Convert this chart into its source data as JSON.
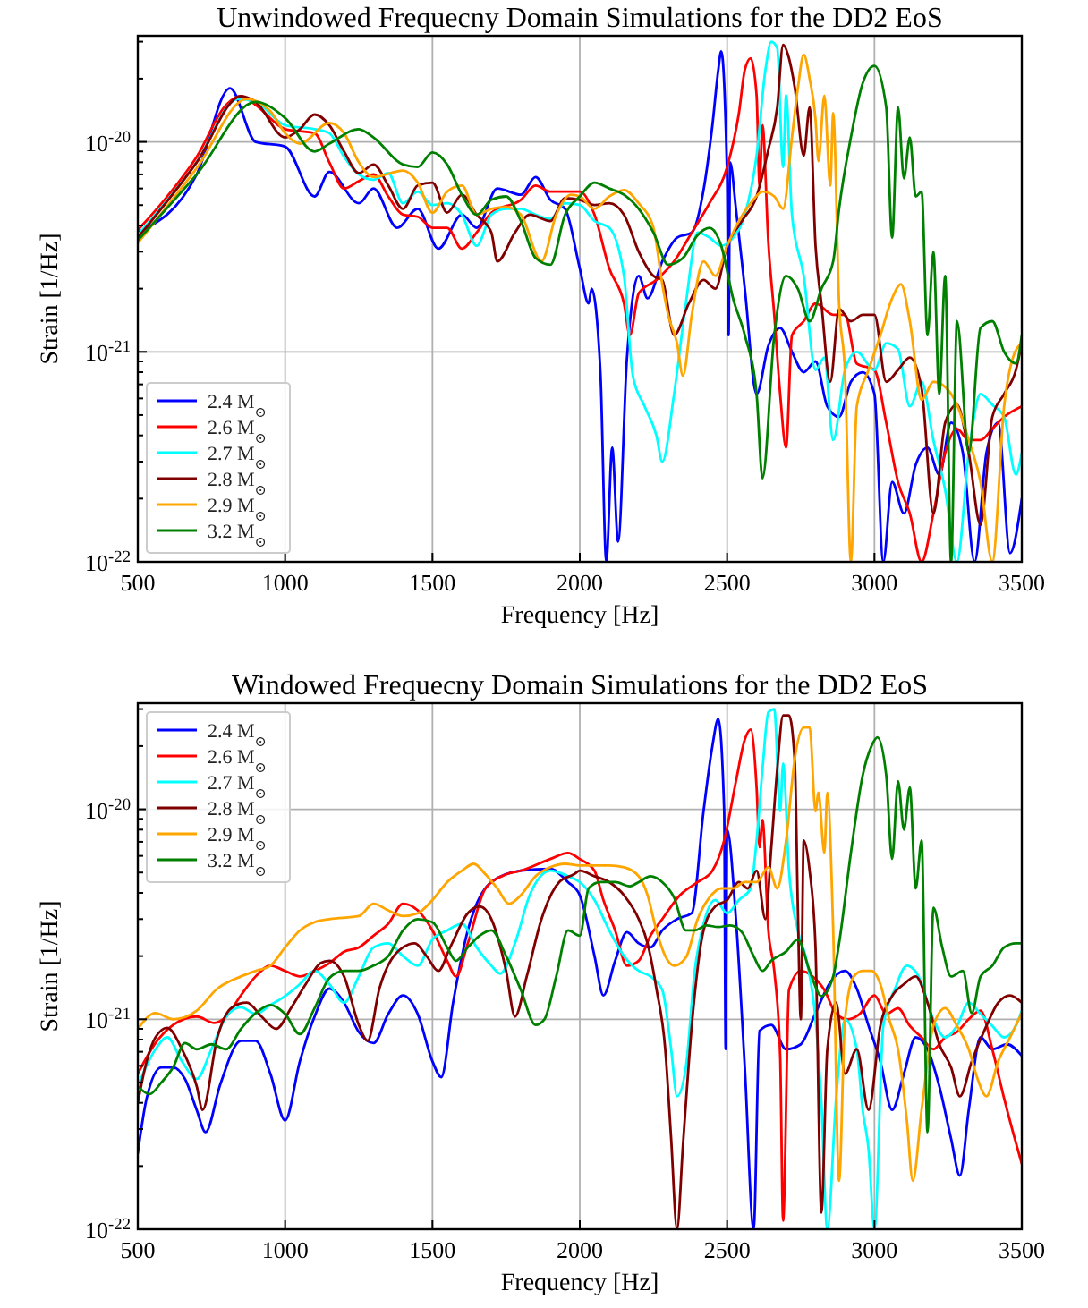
{
  "chart_data": [
    {
      "type": "line",
      "title": "Unwindowed Frequecny Domain Simulations for the DD2 EoS",
      "xlabel": "Frequency [Hz]",
      "ylabel": "Strain [1/Hz]",
      "log": "y",
      "grid": true,
      "legend": "bottom left",
      "line_style": "solid",
      "marker": "none",
      "xlim": [
        500,
        3500
      ],
      "xticks": [
        500,
        1000,
        1500,
        2000,
        2500,
        3000,
        3500
      ],
      "ylim": [
        1e-22,
        3.2e-20
      ],
      "yticks": [
        {
          "value": 1e-22,
          "label": "10$^{-22}$"
        },
        {
          "value": 2e-22,
          "label": null
        },
        {
          "value": 3e-22,
          "label": null
        },
        {
          "value": 4e-22,
          "label": null
        },
        {
          "value": 5e-22,
          "label": null
        },
        {
          "value": 6e-22,
          "label": null
        },
        {
          "value": 7e-22,
          "label": null
        },
        {
          "value": 8e-22,
          "label": null
        },
        {
          "value": 9e-22,
          "label": null
        },
        {
          "value": 1e-21,
          "label": "10$^{-21}$"
        },
        {
          "value": 2e-21,
          "label": null
        },
        {
          "value": 3e-21,
          "label": null
        },
        {
          "value": 4e-21,
          "label": null
        },
        {
          "value": 5e-21,
          "label": null
        },
        {
          "value": 6e-21,
          "label": null
        },
        {
          "value": 7e-21,
          "label": null
        },
        {
          "value": 8e-21,
          "label": null
        },
        {
          "value": 9e-21,
          "label": null
        },
        {
          "value": 1e-20,
          "label": "10$^{-20}$"
        },
        {
          "value": 2e-20,
          "label": null
        },
        {
          "value": 3e-20,
          "label": null
        }
      ],
      "series": [
        {
          "name": "2.4 M$_{⊙}$",
          "color": "#0000ff",
          "x": [
            500,
            700,
            813,
            900,
            1000,
            1100,
            1150,
            1250,
            1300,
            1380,
            1450,
            1520,
            1600,
            1650,
            1720,
            1800,
            1850,
            1900,
            1950,
            2000,
            2030,
            2040,
            2070,
            2090,
            2110,
            2130,
            2160,
            2200,
            2230,
            2280,
            2330,
            2380,
            2420,
            2450,
            2470,
            2480,
            2500,
            2505,
            2510,
            2530,
            2560,
            2600,
            2640,
            2680,
            2720,
            2760,
            2800,
            2840,
            2880,
            2920,
            2960,
            3000,
            3030,
            3060,
            3100,
            3140,
            3180,
            3220,
            3260,
            3300,
            3340,
            3380,
            3420,
            3460,
            3500
          ],
          "values": [
            3.7e-21,
            7e-21,
            1.8e-20,
            1e-20,
            9.5e-21,
            5.5e-21,
            7.2e-21,
            5.1e-21,
            6e-21,
            3.9e-21,
            4.8e-21,
            3.1e-21,
            4.5e-21,
            3.9e-21,
            6e-21,
            5.6e-21,
            6.8e-21,
            5.3e-21,
            4.8e-21,
            2.5e-21,
            1.7e-21,
            2e-21,
            8e-22,
            1e-22,
            3.5e-22,
            1.25e-22,
            9.3e-22,
            2.3e-21,
            1.8e-21,
            2.7e-21,
            3.5e-21,
            3.7e-21,
            5.9e-21,
            1.2e-20,
            2.2e-20,
            2.7e-20,
            6.7e-21,
            1.2e-21,
            8e-21,
            4.8e-21,
            2e-21,
            6.3e-22,
            1.07e-21,
            1.3e-21,
            1e-21,
            8e-22,
            9e-22,
            5.5e-22,
            4.9e-22,
            7.2e-22,
            8e-22,
            6.3e-22,
            1e-22,
            2.4e-22,
            1.7e-22,
            2.9e-22,
            3.5e-22,
            2.6e-22,
            4.6e-22,
            3.3e-22,
            1e-22,
            3.3e-22,
            4.6e-22,
            1.1e-22,
            2e-22
          ]
        },
        {
          "name": "2.6 M$_{⊙}$",
          "color": "#ff0000",
          "x": [
            500,
            600,
            700,
            800,
            850,
            900,
            1000,
            1100,
            1150,
            1200,
            1250,
            1300,
            1350,
            1400,
            1450,
            1500,
            1550,
            1600,
            1650,
            1700,
            1800,
            1850,
            1900,
            2000,
            2050,
            2100,
            2150,
            2170,
            2200,
            2260,
            2320,
            2380,
            2440,
            2500,
            2540,
            2560,
            2580,
            2600,
            2610,
            2620,
            2640,
            2660,
            2680,
            2700,
            2720,
            2760,
            2800,
            2860,
            2900,
            2940,
            3000,
            3040,
            3080,
            3120,
            3160,
            3200,
            3240,
            3280,
            3320,
            3360,
            3400,
            3440,
            3500
          ],
          "values": [
            3.8e-21,
            5.5e-21,
            8.5e-21,
            1.5e-20,
            1.65e-20,
            1.5e-20,
            1.15e-20,
            1.1e-20,
            8e-21,
            6e-21,
            6.5e-21,
            7e-21,
            5.5e-21,
            4.5e-21,
            4.4e-21,
            3.9e-21,
            3.9e-21,
            3.1e-21,
            3.7e-21,
            4.6e-21,
            5.3e-21,
            6.2e-21,
            5.8e-21,
            5.8e-21,
            4.5e-21,
            2.5e-21,
            1.7e-21,
            1.2e-21,
            1.9e-21,
            2.2e-21,
            2.7e-21,
            3.7e-21,
            5.1e-21,
            7.6e-21,
            1.37e-20,
            2.2e-20,
            2.5e-20,
            1.67e-20,
            6.2e-21,
            1.2e-20,
            3.3e-21,
            1.5e-21,
            6.3e-22,
            3.5e-22,
            1.2e-21,
            1.4e-21,
            1.7e-21,
            1.5e-21,
            1.5e-21,
            8.8e-22,
            8.2e-22,
            4.6e-22,
            2.4e-22,
            1.7e-22,
            1e-22,
            1.7e-22,
            3.3e-22,
            4.3e-22,
            3.8e-22,
            3.8e-22,
            4.3e-22,
            4.9e-22,
            5.5e-22
          ]
        },
        {
          "name": "2.7 M$_{⊙}$",
          "color": "#00ffff",
          "x": [
            500,
            700,
            840,
            900,
            1000,
            1100,
            1150,
            1200,
            1250,
            1300,
            1350,
            1400,
            1450,
            1500,
            1550,
            1600,
            1650,
            1700,
            1750,
            1800,
            1850,
            1900,
            1950,
            2000,
            2050,
            2100,
            2150,
            2180,
            2220,
            2260,
            2280,
            2320,
            2360,
            2400,
            2440,
            2480,
            2520,
            2560,
            2600,
            2630,
            2650,
            2670,
            2690,
            2700,
            2720,
            2760,
            2800,
            2830,
            2860,
            2900,
            2940,
            3000,
            3040,
            3080,
            3120,
            3160,
            3200,
            3240,
            3280,
            3320,
            3360,
            3400,
            3440,
            3480,
            3500
          ],
          "values": [
            3.6e-21,
            8e-21,
            1.6e-20,
            1.55e-20,
            1.2e-20,
            1.15e-20,
            1.1e-20,
            8.5e-21,
            7e-21,
            6.6e-21,
            7.1e-21,
            5.1e-21,
            5.8e-21,
            5e-21,
            5.1e-21,
            4.5e-21,
            3.2e-21,
            4.5e-21,
            4.8e-21,
            4.8e-21,
            4.5e-21,
            4.3e-21,
            5.1e-21,
            5e-21,
            4.2e-21,
            3.9e-21,
            2.3e-21,
            7.7e-22,
            5.5e-22,
            4e-22,
            3e-22,
            6.3e-22,
            1.7e-21,
            3.7e-21,
            3.5e-21,
            3.2e-21,
            3.5e-21,
            4.5e-21,
            8.6e-21,
            2.2e-20,
            3e-20,
            2.8e-20,
            7.6e-21,
            1.67e-20,
            4.5e-21,
            2.3e-21,
            8.2e-22,
            9.4e-22,
            3.8e-22,
            8.2e-22,
            1e-21,
            8.2e-22,
            1.1e-21,
            1.03e-21,
            5.5e-22,
            7.2e-22,
            3.8e-22,
            2.2e-22,
            1e-22,
            3.3e-22,
            6.3e-22,
            5.6e-22,
            4.9e-22,
            2.6e-22,
            3.3e-22
          ]
        },
        {
          "name": "2.8 M$_{⊙}$",
          "color": "#800000",
          "x": [
            500,
            700,
            850,
            900,
            1000,
            1050,
            1100,
            1150,
            1200,
            1250,
            1300,
            1350,
            1400,
            1450,
            1500,
            1550,
            1600,
            1650,
            1700,
            1720,
            1780,
            1830,
            1900,
            1950,
            2000,
            2050,
            2100,
            2150,
            2200,
            2250,
            2280,
            2320,
            2370,
            2420,
            2460,
            2500,
            2550,
            2600,
            2640,
            2670,
            2690,
            2710,
            2730,
            2760,
            2780,
            2800,
            2820,
            2850,
            2880,
            2920,
            2960,
            3000,
            3040,
            3080,
            3120,
            3160,
            3200,
            3240,
            3280,
            3320,
            3360,
            3400,
            3440,
            3480,
            3500
          ],
          "values": [
            3.5e-21,
            8e-21,
            1.65e-20,
            1.55e-20,
            1.05e-20,
            1.15e-20,
            1.35e-20,
            1.2e-20,
            9e-21,
            7.1e-21,
            7.8e-21,
            6.2e-21,
            4.8e-21,
            6.2e-21,
            6.4e-21,
            4.6e-21,
            5.6e-21,
            4.5e-21,
            3.7e-21,
            2.7e-21,
            3.7e-21,
            4.5e-21,
            4.2e-21,
            5.4e-21,
            5.3e-21,
            5e-21,
            5.1e-21,
            4.5e-21,
            3e-21,
            2.3e-21,
            2.2e-21,
            1.2e-21,
            1.7e-21,
            2.2e-21,
            2e-21,
            3.2e-21,
            4.2e-21,
            5.5e-21,
            9.2e-21,
            1.46e-20,
            2.9e-20,
            2.5e-20,
            1.8e-20,
            8.6e-21,
            1.46e-20,
            3.2e-21,
            1.7e-21,
            7.2e-22,
            1.6e-21,
            1.4e-21,
            1.5e-21,
            1.5e-21,
            7.2e-22,
            8.2e-22,
            9.4e-22,
            6.7e-22,
            1.7e-22,
            4.6e-22,
            5.6e-22,
            3.3e-22,
            1.5e-22,
            4.9e-22,
            6.3e-22,
            8.2e-22,
            1.1e-21
          ]
        },
        {
          "name": "2.9 M$_{⊙}$",
          "color": "#ffa500",
          "x": [
            500,
            700,
            870,
            950,
            1000,
            1050,
            1150,
            1200,
            1250,
            1300,
            1400,
            1450,
            1500,
            1550,
            1600,
            1650,
            1700,
            1750,
            1800,
            1870,
            1920,
            1970,
            2000,
            2050,
            2100,
            2150,
            2200,
            2250,
            2280,
            2300,
            2330,
            2350,
            2380,
            2420,
            2460,
            2500,
            2540,
            2580,
            2620,
            2660,
            2690,
            2720,
            2740,
            2760,
            2780,
            2800,
            2810,
            2830,
            2850,
            2860,
            2880,
            2900,
            2920,
            2940,
            2980,
            3020,
            3060,
            3090,
            3120,
            3160,
            3200,
            3240,
            3280,
            3320,
            3360,
            3400,
            3440,
            3470,
            3500
          ],
          "values": [
            3.3e-21,
            7.5e-21,
            1.6e-20,
            1.4e-20,
            1.1e-20,
            9.8e-21,
            1.23e-20,
            1.1e-20,
            8e-21,
            6.8e-21,
            7.3e-21,
            6.4e-21,
            4.6e-21,
            5.8e-21,
            6.2e-21,
            4.5e-21,
            4.8e-21,
            4.9e-21,
            4.5e-21,
            2.7e-21,
            4.5e-21,
            5.6e-21,
            5.5e-21,
            4.8e-21,
            5.5e-21,
            5.9e-21,
            5.1e-21,
            3.9e-21,
            2.1e-21,
            1.5e-21,
            1.1e-21,
            7.7e-22,
            1.5e-21,
            2.7e-21,
            2.3e-21,
            3.2e-21,
            4.2e-21,
            5.1e-21,
            5.8e-21,
            5.5e-21,
            4.8e-21,
            1.05e-20,
            1.8e-20,
            2.6e-20,
            2e-20,
            1.28e-20,
            8.1e-21,
            1.66e-20,
            6.2e-21,
            1.37e-20,
            1.7e-21,
            8e-22,
            1e-22,
            5.5e-22,
            8.2e-22,
            1.2e-21,
            1.8e-21,
            2.1e-21,
            1.4e-21,
            5.9e-22,
            7.2e-22,
            6.8e-22,
            5.6e-22,
            3.8e-22,
            2.4e-22,
            1e-22,
            5.5e-22,
            9.4e-22,
            1.1e-21
          ]
        },
        {
          "name": "3.2 M$_{⊙}$",
          "color": "#008000",
          "x": [
            500,
            700,
            900,
            1000,
            1100,
            1150,
            1250,
            1300,
            1400,
            1450,
            1500,
            1550,
            1600,
            1650,
            1700,
            1750,
            1800,
            1850,
            1900,
            1950,
            2000,
            2050,
            2100,
            2150,
            2200,
            2250,
            2300,
            2350,
            2400,
            2440,
            2480,
            2520,
            2560,
            2600,
            2620,
            2660,
            2700,
            2740,
            2780,
            2820,
            2860,
            2880,
            2920,
            2960,
            3000,
            3040,
            3060,
            3080,
            3100,
            3120,
            3140,
            3160,
            3180,
            3200,
            3220,
            3240,
            3260,
            3280,
            3320,
            3360,
            3400,
            3440,
            3480,
            3500
          ],
          "values": [
            3.4e-21,
            7e-21,
            1.55e-20,
            1.3e-20,
            9e-21,
            9.8e-21,
            1.15e-20,
            1.05e-20,
            7.8e-21,
            7.6e-21,
            8.9e-21,
            7.8e-21,
            5.6e-21,
            4.5e-21,
            5.3e-21,
            5.5e-21,
            4.2e-21,
            2.8e-21,
            2.6e-21,
            4.5e-21,
            5.5e-21,
            6.4e-21,
            6e-21,
            5.6e-21,
            4.8e-21,
            3.7e-21,
            2.6e-21,
            2.8e-21,
            3.6e-21,
            3.9e-21,
            3.2e-21,
            1.8e-21,
            1.2e-21,
            6.3e-22,
            2.5e-22,
            1.2e-21,
            2.3e-21,
            2e-21,
            1.4e-21,
            2e-21,
            2.7e-21,
            4.8e-21,
            1.05e-20,
            1.9e-20,
            2.3e-20,
            1.46e-20,
            3.5e-21,
            1.46e-20,
            6.7e-21,
            1.05e-20,
            5.5e-21,
            5.8e-21,
            1.2e-21,
            3e-21,
            6.3e-22,
            2.3e-21,
            1e-22,
            1.4e-21,
            3.3e-22,
            1.3e-21,
            1.4e-21,
            1e-21,
            8.8e-22,
            1.2e-21
          ]
        }
      ]
    },
    {
      "type": "line",
      "title": "Windowed Frequecny Domain Simulations for the DD2 EoS",
      "xlabel": "Frequency [Hz]",
      "ylabel": "Strain [1/Hz]",
      "log": "y",
      "grid": true,
      "legend": "top left",
      "line_style": "solid",
      "marker": "none",
      "xlim": [
        500,
        3500
      ],
      "xticks": [
        500,
        1000,
        1500,
        2000,
        2500,
        3000,
        3500
      ],
      "ylim": [
        1e-22,
        3.2e-20
      ],
      "yticks": [
        {
          "value": 1e-22,
          "label": "10$^{-22}$"
        },
        {
          "value": 2e-22,
          "label": null
        },
        {
          "value": 3e-22,
          "label": null
        },
        {
          "value": 4e-22,
          "label": null
        },
        {
          "value": 5e-22,
          "label": null
        },
        {
          "value": 6e-22,
          "label": null
        },
        {
          "value": 7e-22,
          "label": null
        },
        {
          "value": 8e-22,
          "label": null
        },
        {
          "value": 9e-22,
          "label": null
        },
        {
          "value": 1e-21,
          "label": "10$^{-21}$"
        },
        {
          "value": 2e-21,
          "label": null
        },
        {
          "value": 3e-21,
          "label": null
        },
        {
          "value": 4e-21,
          "label": null
        },
        {
          "value": 5e-21,
          "label": null
        },
        {
          "value": 6e-21,
          "label": null
        },
        {
          "value": 7e-21,
          "label": null
        },
        {
          "value": 8e-21,
          "label": null
        },
        {
          "value": 9e-21,
          "label": null
        },
        {
          "value": 1e-20,
          "label": "10$^{-20}$"
        },
        {
          "value": 2e-20,
          "label": null
        },
        {
          "value": 3e-20,
          "label": null
        }
      ],
      "series": [
        {
          "name": "2.4 M$_{⊙}$",
          "color": "#0000ff",
          "x": [
            500,
            530,
            580,
            620,
            660,
            700,
            730,
            780,
            850,
            900,
            950,
            1000,
            1050,
            1100,
            1150,
            1200,
            1250,
            1300,
            1350,
            1400,
            1450,
            1500,
            1530,
            1570,
            1620,
            1700,
            1800,
            1900,
            1960,
            2000,
            2050,
            2080,
            2120,
            2160,
            2200,
            2240,
            2280,
            2330,
            2380,
            2420,
            2450,
            2470,
            2490,
            2495,
            2500,
            2530,
            2560,
            2590,
            2610,
            2650,
            2700,
            2750,
            2800,
            2850,
            2900,
            2940,
            2980,
            3020,
            3060,
            3100,
            3140,
            3180,
            3220,
            3260,
            3290,
            3320,
            3360,
            3400,
            3450,
            3500
          ],
          "values": [
            2.3e-22,
            4.2e-22,
            5.9e-22,
            5.9e-22,
            5.2e-22,
            3.7e-22,
            2.9e-22,
            4.9e-22,
            7.9e-22,
            7.9e-22,
            5.5e-22,
            3.3e-22,
            6.3e-22,
            1.03e-21,
            1.4e-21,
            1.2e-21,
            8.7e-22,
            7.7e-22,
            1.06e-21,
            1.3e-21,
            1.06e-21,
            6.3e-22,
            5.3e-22,
            1.2e-21,
            2.65e-21,
            4.5e-21,
            5.1e-21,
            5.2e-21,
            4.5e-21,
            3.9e-21,
            2e-21,
            1.3e-21,
            1.9e-21,
            2.6e-21,
            2.3e-21,
            2.2e-21,
            2.65e-21,
            3e-21,
            3.2e-21,
            9.8e-21,
            2e-20,
            2.7e-20,
            9.8e-21,
            7.2e-22,
            8e-21,
            3e-21,
            5.9e-22,
            1e-22,
            8.8e-22,
            9.4e-22,
            7.2e-22,
            7.6e-22,
            1.07e-21,
            1.5e-21,
            1.7e-21,
            1.4e-21,
            9.3e-22,
            6.3e-22,
            3.7e-22,
            5.5e-22,
            8.2e-22,
            7.2e-22,
            4.8e-22,
            2.7e-22,
            1.8e-22,
            3.7e-22,
            8.2e-22,
            7.2e-22,
            7.6e-22,
            6.7e-22
          ]
        },
        {
          "name": "2.6 M$_{⊙}$",
          "color": "#ff0000",
          "x": [
            500,
            560,
            620,
            700,
            760,
            800,
            850,
            900,
            950,
            1000,
            1050,
            1100,
            1150,
            1200,
            1250,
            1300,
            1350,
            1400,
            1450,
            1500,
            1550,
            1580,
            1620,
            1680,
            1750,
            1800,
            1900,
            1960,
            2000,
            2050,
            2080,
            2120,
            2160,
            2200,
            2240,
            2280,
            2340,
            2400,
            2450,
            2490,
            2530,
            2560,
            2580,
            2600,
            2610,
            2620,
            2640,
            2660,
            2680,
            2690,
            2710,
            2750,
            2790,
            2830,
            2870,
            2910,
            2950,
            3000,
            3040,
            3080,
            3120,
            3160,
            3200,
            3240,
            3280,
            3320,
            3360,
            3400,
            3440,
            3470,
            3500
          ],
          "values": [
            5.5e-22,
            7.7e-22,
            9.4e-22,
            1.03e-21,
            9.6e-22,
            1.03e-21,
            1.3e-21,
            1.6e-21,
            1.8e-21,
            1.7e-21,
            1.6e-21,
            1.7e-21,
            1.85e-21,
            2.1e-21,
            2.2e-21,
            2.5e-21,
            2.85e-21,
            3.55e-21,
            3.3e-21,
            2.65e-21,
            1.9e-21,
            1.6e-21,
            2.3e-21,
            4.2e-21,
            4.9e-21,
            5.1e-21,
            5.8e-21,
            6.2e-21,
            5.8e-21,
            5.1e-21,
            3.7e-21,
            2.65e-21,
            1.8e-21,
            1.9e-21,
            2.5e-21,
            3e-21,
            3.9e-21,
            4.5e-21,
            5.1e-21,
            7.1e-21,
            1.36e-20,
            2.15e-20,
            2.4e-20,
            1.27e-20,
            6.6e-21,
            8.9e-21,
            2.65e-21,
            1.7e-21,
            6.7e-22,
            1.1e-22,
            1.38e-21,
            1.7e-21,
            1.6e-21,
            1.38e-21,
            1.06e-21,
            1e-21,
            1.06e-21,
            1.3e-21,
            1.06e-21,
            1.13e-21,
            9.3e-22,
            8.2e-22,
            7.2e-22,
            8.2e-22,
            8.7e-22,
            1e-21,
            1.1e-21,
            7.2e-22,
            4.2e-22,
            2.9e-22,
            2.05e-22
          ]
        },
        {
          "name": "2.7 M$_{⊙}$",
          "color": "#00ffff",
          "x": [
            500,
            560,
            600,
            650,
            700,
            750,
            800,
            850,
            900,
            950,
            1000,
            1050,
            1100,
            1150,
            1200,
            1250,
            1300,
            1350,
            1400,
            1450,
            1500,
            1550,
            1600,
            1650,
            1700,
            1730,
            1780,
            1830,
            1900,
            1960,
            2000,
            2050,
            2100,
            2150,
            2200,
            2240,
            2280,
            2310,
            2330,
            2360,
            2390,
            2420,
            2460,
            2500,
            2540,
            2580,
            2600,
            2620,
            2640,
            2660,
            2680,
            2690,
            2710,
            2740,
            2770,
            2800,
            2820,
            2840,
            2870,
            2900,
            2940,
            2960,
            2980,
            3000,
            3030,
            3070,
            3110,
            3150,
            3200,
            3240,
            3280,
            3320,
            3360,
            3400,
            3440,
            3480,
            3500
          ],
          "values": [
            4.8e-22,
            7.2e-22,
            8.2e-22,
            6.3e-22,
            5.2e-22,
            7.2e-22,
            1.03e-21,
            1.14e-21,
            1.06e-21,
            1.17e-21,
            1.29e-21,
            1.47e-21,
            1.7e-21,
            1.47e-21,
            1.2e-21,
            1.6e-21,
            2.2e-21,
            2.3e-21,
            2e-21,
            1.8e-21,
            2.4e-21,
            2.65e-21,
            2.85e-21,
            2.2e-21,
            1.8e-21,
            1.65e-21,
            2.3e-21,
            3.9e-21,
            5.1e-21,
            4.8e-21,
            4.5e-21,
            3.7e-21,
            2.65e-21,
            2e-21,
            1.7e-21,
            1.6e-21,
            1.38e-21,
            7.2e-22,
            4.3e-22,
            5.9e-22,
            1.7e-21,
            2.85e-21,
            3.7e-21,
            3.2e-21,
            3.7e-21,
            4.2e-21,
            7.1e-21,
            1.55e-20,
            2.9e-20,
            3e-20,
            9.8e-21,
            1.65e-20,
            5.1e-21,
            2.65e-21,
            1.9e-21,
            1e-21,
            4e-22,
            1e-22,
            4.2e-22,
            1e-21,
            7.2e-22,
            3.7e-22,
            2.4e-22,
            1e-22,
            9.3e-22,
            1.4e-21,
            1.8e-21,
            1.6e-21,
            1e-21,
            8.2e-22,
            9.3e-22,
            1.2e-21,
            1.06e-21,
            9.3e-22,
            8.2e-22,
            9.3e-22,
            1.1e-21
          ]
        },
        {
          "name": "2.8 M$_{⊙}$",
          "color": "#800000",
          "x": [
            500,
            530,
            560,
            600,
            650,
            700,
            720,
            770,
            820,
            870,
            920,
            970,
            1020,
            1070,
            1120,
            1150,
            1200,
            1250,
            1280,
            1320,
            1400,
            1440,
            1480,
            1520,
            1560,
            1620,
            1660,
            1700,
            1750,
            1780,
            1820,
            1870,
            1930,
            1980,
            2000,
            2050,
            2100,
            2150,
            2200,
            2230,
            2260,
            2290,
            2310,
            2330,
            2350,
            2380,
            2420,
            2460,
            2500,
            2540,
            2570,
            2600,
            2630,
            2650,
            2670,
            2690,
            2710,
            2730,
            2740,
            2750,
            2760,
            2780,
            2800,
            2820,
            2840,
            2870,
            2900,
            2940,
            2980,
            3020,
            3060,
            3100,
            3140,
            3180,
            3220,
            3260,
            3290,
            3330,
            3380,
            3420,
            3460,
            3500
          ],
          "values": [
            4e-22,
            6.3e-22,
            8.2e-22,
            9.1e-22,
            7.2e-22,
            4.8e-22,
            3.7e-22,
            8.2e-22,
            1.14e-21,
            1.2e-21,
            1.03e-21,
            9e-22,
            1.13e-21,
            1.47e-21,
            1.85e-21,
            1.9e-21,
            1.6e-21,
            9.4e-22,
            7.9e-22,
            1.4e-21,
            2.2e-21,
            2.3e-21,
            2e-21,
            1.7e-21,
            2.2e-21,
            3.2e-21,
            3.45e-21,
            3e-21,
            1.7e-21,
            1.03e-21,
            1.6e-21,
            3e-21,
            4.5e-21,
            4.9e-21,
            5.1e-21,
            4.8e-21,
            4.5e-21,
            3.9e-21,
            3e-21,
            2.3e-21,
            1.4e-21,
            7.2e-22,
            2.7e-22,
            1e-22,
            2.5e-22,
            9.3e-22,
            2.65e-21,
            3.45e-21,
            3.7e-21,
            4.5e-21,
            4.2e-21,
            5.1e-21,
            3e-21,
            6.6e-21,
            1.55e-20,
            2.8e-20,
            2.8e-20,
            1.65e-20,
            3.4e-21,
            1e-21,
            7.1e-21,
            5.1e-21,
            2.2e-21,
            1.2e-22,
            7.2e-22,
            1.2e-21,
            5.5e-22,
            7.2e-22,
            3.7e-22,
            9.3e-22,
            1.29e-21,
            1.47e-21,
            1.6e-21,
            1.2e-21,
            7.6e-22,
            5.9e-22,
            4.3e-22,
            6.3e-22,
            9.3e-22,
            1.2e-21,
            1.3e-21,
            1.2e-21
          ]
        },
        {
          "name": "2.9 M$_{⊙}$",
          "color": "#ffa500",
          "x": [
            500,
            560,
            620,
            700,
            770,
            850,
            900,
            950,
            1000,
            1050,
            1100,
            1150,
            1250,
            1300,
            1350,
            1400,
            1450,
            1500,
            1550,
            1600,
            1640,
            1680,
            1720,
            1760,
            1800,
            1850,
            1900,
            1950,
            2000,
            2050,
            2100,
            2150,
            2200,
            2230,
            2260,
            2290,
            2320,
            2360,
            2400,
            2440,
            2480,
            2520,
            2560,
            2600,
            2640,
            2670,
            2700,
            2730,
            2760,
            2780,
            2800,
            2810,
            2830,
            2840,
            2860,
            2880,
            2900,
            2930,
            2960,
            2990,
            3020,
            3050,
            3080,
            3110,
            3130,
            3160,
            3200,
            3240,
            3280,
            3320,
            3350,
            3380,
            3420,
            3460,
            3500
          ],
          "values": [
            9e-22,
            1.07e-21,
            1e-21,
            1.1e-21,
            1.4e-21,
            1.6e-21,
            1.7e-21,
            1.8e-21,
            2.2e-21,
            2.65e-21,
            2.9e-21,
            3e-21,
            3.1e-21,
            3.55e-21,
            3.3e-21,
            3.1e-21,
            3.2e-21,
            3.7e-21,
            4.5e-21,
            5.1e-21,
            5.5e-21,
            4.9e-21,
            4.2e-21,
            3.55e-21,
            3.9e-21,
            4.8e-21,
            5.3e-21,
            5.5e-21,
            5.4e-21,
            5.4e-21,
            5.4e-21,
            5.3e-21,
            4.8e-21,
            3.9e-21,
            2.65e-21,
            2e-21,
            1.8e-21,
            1.97e-21,
            3e-21,
            3.8e-21,
            4.2e-21,
            4.2e-21,
            4.5e-21,
            4.5e-21,
            5.3e-21,
            4.2e-21,
            7.1e-21,
            1.76e-20,
            2.45e-20,
            2.45e-20,
            9.8e-21,
            1.2e-20,
            6.2e-21,
            1.2e-20,
            2.65e-21,
            1.7e-22,
            1e-21,
            1.6e-21,
            1.7e-21,
            1.7e-21,
            1.47e-21,
            1e-21,
            7.2e-22,
            3.3e-22,
            1.7e-22,
            3.7e-22,
            9.3e-22,
            1.13e-21,
            9.3e-22,
            7.2e-22,
            5.2e-22,
            4.3e-22,
            6.3e-22,
            8.2e-22,
            1.07e-21
          ]
        },
        {
          "name": "3.2 M$_{⊙}$",
          "color": "#008000",
          "x": [
            500,
            540,
            580,
            620,
            660,
            700,
            750,
            800,
            850,
            900,
            950,
            1000,
            1050,
            1100,
            1150,
            1200,
            1250,
            1300,
            1350,
            1400,
            1450,
            1500,
            1550,
            1580,
            1620,
            1660,
            1700,
            1750,
            1800,
            1850,
            1880,
            1920,
            1960,
            2000,
            2030,
            2070,
            2120,
            2170,
            2200,
            2240,
            2280,
            2320,
            2360,
            2390,
            2430,
            2470,
            2510,
            2550,
            2590,
            2620,
            2650,
            2700,
            2740,
            2780,
            2820,
            2860,
            2880,
            2920,
            2960,
            2990,
            3010,
            3040,
            3060,
            3080,
            3100,
            3120,
            3140,
            3160,
            3180,
            3200,
            3230,
            3260,
            3300,
            3330,
            3360,
            3400,
            3440,
            3480,
            3500
          ],
          "values": [
            4.8e-22,
            4.4e-22,
            5e-22,
            5.9e-22,
            7.7e-22,
            7.2e-22,
            7.6e-22,
            7.2e-22,
            9e-22,
            1.07e-21,
            1.17e-21,
            1.06e-21,
            8.5e-22,
            1.13e-21,
            1.57e-21,
            1.7e-21,
            1.7e-21,
            1.8e-21,
            2e-21,
            2.65e-21,
            3e-21,
            2.9e-21,
            2.2e-21,
            1.9e-21,
            2.2e-21,
            2.5e-21,
            2.65e-21,
            2e-21,
            1.38e-21,
            9.4e-22,
            1e-21,
            1.6e-21,
            2.65e-21,
            2.5e-21,
            4.2e-21,
            4.5e-21,
            4.5e-21,
            4.3e-21,
            4.5e-21,
            4.8e-21,
            4.5e-21,
            3.8e-21,
            2.65e-21,
            2.65e-21,
            2.8e-21,
            2.75e-21,
            2.8e-21,
            2.6e-21,
            2e-21,
            1.7e-21,
            1.9e-21,
            2.1e-21,
            2.4e-21,
            1.7e-21,
            1.29e-21,
            1.6e-21,
            2.3e-21,
            6.2e-21,
            1.45e-20,
            2e-20,
            2.2e-20,
            1.45e-20,
            5.8e-21,
            1.36e-20,
            8e-21,
            1.27e-20,
            4.2e-21,
            7.1e-21,
            2.9e-22,
            3.4e-21,
            2.2e-21,
            1.6e-21,
            1.7e-21,
            1.07e-21,
            1.6e-21,
            1.8e-21,
            2.2e-21,
            2.3e-21,
            2.3e-21
          ]
        }
      ]
    }
  ]
}
